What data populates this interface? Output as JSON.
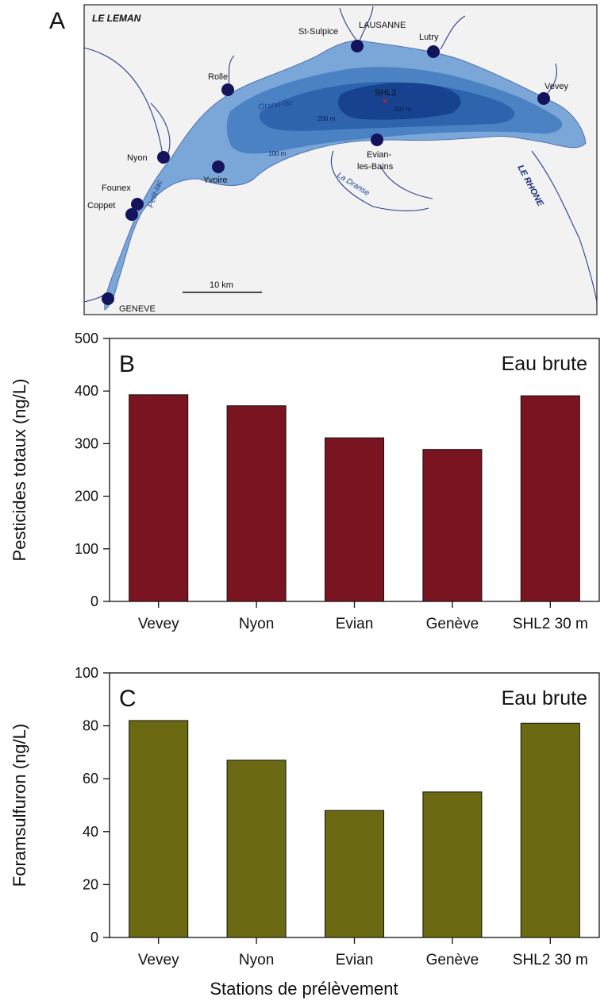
{
  "panel_a": {
    "letter": "A",
    "map_title": "LE LEMAN",
    "stations": [
      "St-Sulpice",
      "LAUSANNE",
      "Lutry",
      "Rolle",
      "Vevey",
      "SHL2",
      "Nyon",
      "Evian-",
      "les-Bains",
      "Founex",
      "Coppet",
      "Yvoire",
      "GENEVE"
    ],
    "water_labels": [
      "Grand-lac",
      "Petit-lac",
      "La Dranse"
    ],
    "river_label": "LE RHONE",
    "depth_labels": [
      "300 m",
      "200 m",
      "100 m"
    ],
    "scale_label": "10 km",
    "colors": {
      "water_shallow": "#7aa7d8",
      "water_mid": "#4b82c4",
      "water_deep": "#2e63ad",
      "water_deepest": "#17428f",
      "land": "#f2f2f2",
      "station": "#14145c"
    }
  },
  "chart_data": [
    {
      "type": "bar",
      "panel": "B",
      "categories": [
        "Vevey",
        "Nyon",
        "Evian",
        "Genève",
        "SHL2 30 m"
      ],
      "values": [
        393,
        372,
        311,
        289,
        391
      ],
      "ylabel": "Pesticides totaux (ng/L)",
      "annotation": "Eau brute",
      "ylim": [
        0,
        500
      ],
      "yticks": [
        "0",
        "100",
        "200",
        "300",
        "400",
        "500"
      ],
      "bar_color": "#7a1420",
      "grid": false
    },
    {
      "type": "bar",
      "panel": "C",
      "categories": [
        "Vevey",
        "Nyon",
        "Evian",
        "Genève",
        "SHL2 30 m"
      ],
      "values": [
        82,
        67,
        48,
        55,
        81
      ],
      "ylabel": "Foramsulfuron (ng/L)",
      "annotation": "Eau brute",
      "ylim": [
        0,
        100
      ],
      "yticks": [
        "0",
        "20",
        "40",
        "60",
        "80",
        "100"
      ],
      "xlabel": "Stations de prélèvement",
      "bar_color": "#6b6a12",
      "grid": false
    }
  ]
}
